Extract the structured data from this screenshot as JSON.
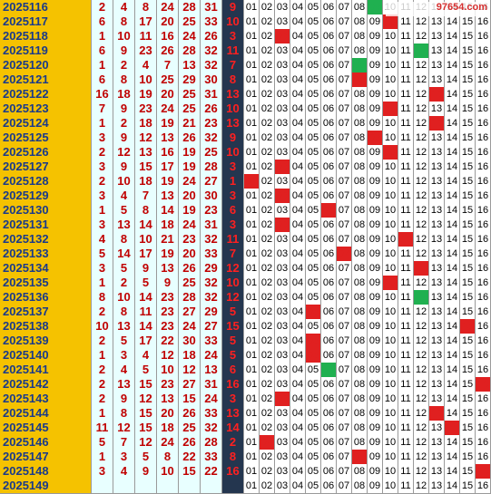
{
  "watermark": "97654.com",
  "colors": {
    "issue_bg": "#f5c200",
    "red_ball": "#c00000",
    "blue_band": "#24364f",
    "hit_red": "#e02020",
    "hit_green": "#20b050"
  },
  "rows": [
    {
      "issue": "2025116",
      "reds": [
        "2",
        "4",
        "8",
        "24",
        "28",
        "31"
      ],
      "blue": "9",
      "hl": [
        {
          "n": 9,
          "c": "g"
        }
      ]
    },
    {
      "issue": "2025117",
      "reds": [
        "6",
        "8",
        "17",
        "20",
        "25",
        "33"
      ],
      "blue": "10",
      "hl": [
        {
          "n": 10,
          "c": "r"
        }
      ]
    },
    {
      "issue": "2025118",
      "reds": [
        "1",
        "10",
        "11",
        "16",
        "24",
        "26"
      ],
      "blue": "3",
      "hl": [
        {
          "n": 3,
          "c": "r"
        }
      ]
    },
    {
      "issue": "2025119",
      "reds": [
        "6",
        "9",
        "23",
        "26",
        "28",
        "32"
      ],
      "blue": "11",
      "hl": [
        {
          "n": 12,
          "c": "g"
        }
      ]
    },
    {
      "issue": "2025120",
      "reds": [
        "1",
        "2",
        "4",
        "7",
        "13",
        "32"
      ],
      "blue": "7",
      "hl": [
        {
          "n": 8,
          "c": "g"
        }
      ]
    },
    {
      "issue": "2025121",
      "reds": [
        "6",
        "8",
        "10",
        "25",
        "29",
        "30"
      ],
      "blue": "8",
      "hl": [
        {
          "n": 8,
          "c": "r"
        }
      ]
    },
    {
      "issue": "2025122",
      "reds": [
        "16",
        "18",
        "19",
        "20",
        "25",
        "31"
      ],
      "blue": "13",
      "hl": [
        {
          "n": 13,
          "c": "r"
        }
      ]
    },
    {
      "issue": "2025123",
      "reds": [
        "7",
        "9",
        "23",
        "24",
        "25",
        "26"
      ],
      "blue": "10",
      "hl": [
        {
          "n": 10,
          "c": "r"
        }
      ]
    },
    {
      "issue": "2025124",
      "reds": [
        "1",
        "2",
        "18",
        "19",
        "21",
        "23"
      ],
      "blue": "13",
      "hl": [
        {
          "n": 13,
          "c": "r"
        }
      ]
    },
    {
      "issue": "2025125",
      "reds": [
        "3",
        "9",
        "12",
        "13",
        "26",
        "32"
      ],
      "blue": "9",
      "hl": [
        {
          "n": 9,
          "c": "r"
        }
      ]
    },
    {
      "issue": "2025126",
      "reds": [
        "2",
        "12",
        "13",
        "16",
        "19",
        "25"
      ],
      "blue": "10",
      "hl": [
        {
          "n": 10,
          "c": "r"
        }
      ]
    },
    {
      "issue": "2025127",
      "reds": [
        "3",
        "9",
        "15",
        "17",
        "19",
        "28"
      ],
      "blue": "3",
      "hl": [
        {
          "n": 3,
          "c": "r"
        }
      ]
    },
    {
      "issue": "2025128",
      "reds": [
        "2",
        "10",
        "18",
        "19",
        "24",
        "27"
      ],
      "blue": "1",
      "hl": [
        {
          "n": 1,
          "c": "r"
        }
      ]
    },
    {
      "issue": "2025129",
      "reds": [
        "3",
        "4",
        "7",
        "13",
        "20",
        "30"
      ],
      "blue": "3",
      "hl": [
        {
          "n": 3,
          "c": "r"
        }
      ]
    },
    {
      "issue": "2025130",
      "reds": [
        "1",
        "5",
        "8",
        "14",
        "19",
        "23"
      ],
      "blue": "6",
      "hl": [
        {
          "n": 6,
          "c": "r"
        }
      ]
    },
    {
      "issue": "2025131",
      "reds": [
        "3",
        "13",
        "14",
        "18",
        "24",
        "31"
      ],
      "blue": "3",
      "hl": [
        {
          "n": 3,
          "c": "r"
        }
      ]
    },
    {
      "issue": "2025132",
      "reds": [
        "4",
        "8",
        "10",
        "21",
        "23",
        "32"
      ],
      "blue": "11",
      "hl": [
        {
          "n": 11,
          "c": "r"
        }
      ]
    },
    {
      "issue": "2025133",
      "reds": [
        "5",
        "14",
        "17",
        "19",
        "20",
        "33"
      ],
      "blue": "7",
      "hl": [
        {
          "n": 7,
          "c": "r"
        }
      ]
    },
    {
      "issue": "2025134",
      "reds": [
        "3",
        "5",
        "9",
        "13",
        "26",
        "29"
      ],
      "blue": "12",
      "hl": [
        {
          "n": 12,
          "c": "r"
        }
      ]
    },
    {
      "issue": "2025135",
      "reds": [
        "1",
        "2",
        "5",
        "9",
        "25",
        "32"
      ],
      "blue": "10",
      "hl": [
        {
          "n": 10,
          "c": "r"
        }
      ]
    },
    {
      "issue": "2025136",
      "reds": [
        "8",
        "10",
        "14",
        "23",
        "28",
        "32"
      ],
      "blue": "12",
      "hl": [
        {
          "n": 12,
          "c": "g"
        }
      ]
    },
    {
      "issue": "2025137",
      "reds": [
        "2",
        "8",
        "11",
        "23",
        "27",
        "29"
      ],
      "blue": "5",
      "hl": [
        {
          "n": 5,
          "c": "r"
        }
      ]
    },
    {
      "issue": "2025138",
      "reds": [
        "10",
        "13",
        "14",
        "23",
        "24",
        "27"
      ],
      "blue": "15",
      "hl": [
        {
          "n": 15,
          "c": "r"
        }
      ]
    },
    {
      "issue": "2025139",
      "reds": [
        "2",
        "5",
        "17",
        "22",
        "30",
        "33"
      ],
      "blue": "5",
      "hl": [
        {
          "n": 5,
          "c": "r"
        }
      ]
    },
    {
      "issue": "2025140",
      "reds": [
        "1",
        "3",
        "4",
        "12",
        "18",
        "24"
      ],
      "blue": "5",
      "hl": [
        {
          "n": 5,
          "c": "r"
        }
      ]
    },
    {
      "issue": "2025141",
      "reds": [
        "2",
        "4",
        "5",
        "10",
        "12",
        "13"
      ],
      "blue": "6",
      "hl": [
        {
          "n": 6,
          "c": "g"
        }
      ]
    },
    {
      "issue": "2025142",
      "reds": [
        "2",
        "13",
        "15",
        "23",
        "27",
        "31"
      ],
      "blue": "16",
      "hl": [
        {
          "n": 16,
          "c": "r"
        }
      ]
    },
    {
      "issue": "2025143",
      "reds": [
        "2",
        "9",
        "12",
        "13",
        "15",
        "24"
      ],
      "blue": "3",
      "hl": [
        {
          "n": 3,
          "c": "r"
        }
      ]
    },
    {
      "issue": "2025144",
      "reds": [
        "1",
        "8",
        "15",
        "20",
        "26",
        "33"
      ],
      "blue": "13",
      "hl": [
        {
          "n": 13,
          "c": "r"
        }
      ]
    },
    {
      "issue": "2025145",
      "reds": [
        "11",
        "12",
        "15",
        "18",
        "25",
        "32"
      ],
      "blue": "14",
      "hl": [
        {
          "n": 14,
          "c": "r"
        }
      ]
    },
    {
      "issue": "2025146",
      "reds": [
        "5",
        "7",
        "12",
        "24",
        "26",
        "28"
      ],
      "blue": "2",
      "hl": [
        {
          "n": 2,
          "c": "r"
        }
      ]
    },
    {
      "issue": "2025147",
      "reds": [
        "1",
        "3",
        "5",
        "8",
        "22",
        "33"
      ],
      "blue": "8",
      "hl": [
        {
          "n": 8,
          "c": "r"
        }
      ]
    },
    {
      "issue": "2025148",
      "reds": [
        "3",
        "4",
        "9",
        "10",
        "15",
        "22"
      ],
      "blue": "16",
      "hl": [
        {
          "n": 16,
          "c": "r"
        }
      ]
    },
    {
      "issue": "2025149",
      "reds": [
        "",
        "",
        "",
        "",
        "",
        ""
      ],
      "blue": "",
      "hl": []
    }
  ],
  "blue_numbers": [
    "01",
    "02",
    "03",
    "04",
    "05",
    "06",
    "07",
    "08",
    "09",
    "10",
    "11",
    "12",
    "13",
    "14",
    "15",
    "16"
  ]
}
